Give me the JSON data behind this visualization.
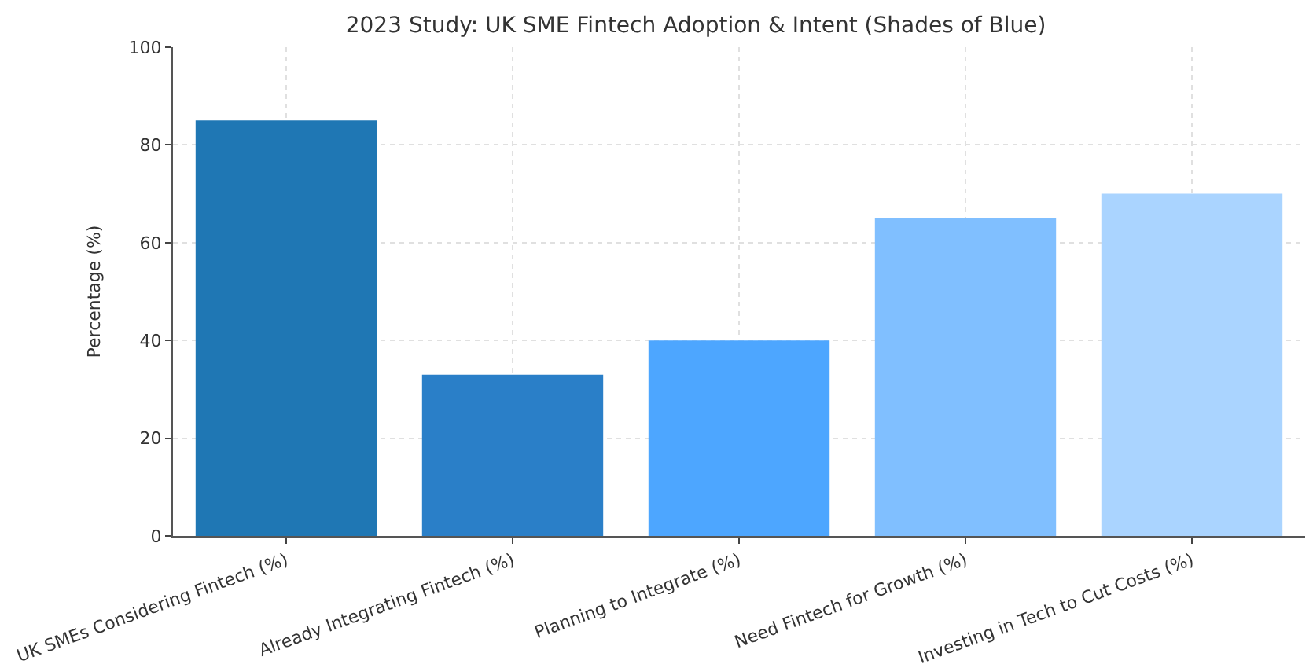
{
  "chart_data": {
    "type": "bar",
    "title": "2023 Study: UK SME Fintech Adoption & Intent (Shades of Blue)",
    "ylabel": "Percentage (%)",
    "categories": [
      "UK SMEs Considering Fintech (%)",
      "Already Integrating Fintech (%)",
      "Planning to Integrate (%)",
      "Need Fintech for Growth (%)",
      "Investing in Tech to Cut Costs (%)"
    ],
    "values": [
      85,
      33,
      40,
      65,
      70
    ],
    "colors": [
      "#1f77b4",
      "#2a7fc8",
      "#4da6ff",
      "#80bfff",
      "#aad4ff"
    ],
    "ylim": [
      0,
      100
    ],
    "yticks": [
      0,
      20,
      40,
      60,
      80,
      100
    ],
    "grid": true
  }
}
